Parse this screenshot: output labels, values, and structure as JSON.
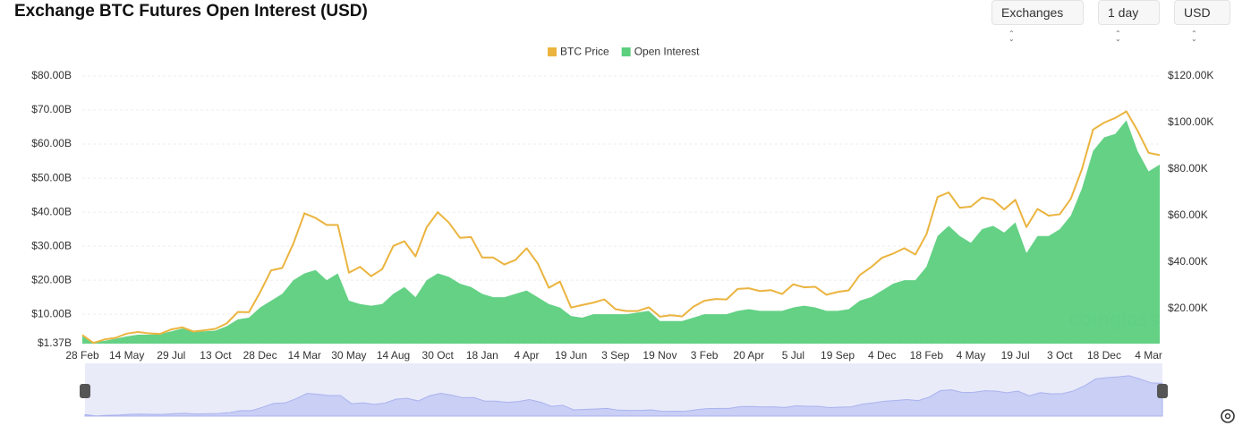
{
  "controls": [
    "Exchanges",
    "1 day",
    "USD"
  ],
  "watermark": "coinglass",
  "chart_data": {
    "type": "combo",
    "title": "Exchange BTC Futures Open Interest (USD)",
    "categories": [
      "28 Feb",
      null,
      null,
      null,
      "14 May",
      null,
      null,
      null,
      "29 Jul",
      null,
      null,
      null,
      "13 Oct",
      null,
      null,
      null,
      "28 Dec",
      null,
      null,
      null,
      "14 Mar",
      null,
      null,
      null,
      "30 May",
      null,
      null,
      null,
      "14 Aug",
      null,
      null,
      null,
      "30 Oct",
      null,
      null,
      null,
      "18 Jan",
      null,
      null,
      null,
      "4 Apr",
      null,
      null,
      null,
      "19 Jun",
      null,
      null,
      null,
      "3 Sep",
      null,
      null,
      null,
      "19 Nov",
      null,
      null,
      null,
      "3 Feb",
      null,
      null,
      null,
      "20 Apr",
      null,
      null,
      null,
      "5 Jul",
      null,
      null,
      null,
      "19 Sep",
      null,
      null,
      null,
      "4 Dec",
      null,
      null,
      null,
      "18 Feb",
      null,
      null,
      null,
      "4 May",
      null,
      null,
      null,
      "19 Jul",
      null,
      null,
      null,
      "3 Oct",
      null,
      null,
      null,
      "18 Dec",
      null,
      null,
      null,
      "4 Mar",
      null
    ],
    "series": [
      {
        "name": "BTC Price",
        "type": "line",
        "axis": "y2",
        "color": "#ebb43f",
        "values": [
          8700,
          5300,
          6800,
          7500,
          9300,
          10000,
          9400,
          9200,
          11100,
          12000,
          10200,
          10700,
          11400,
          13700,
          18600,
          18500,
          27000,
          36500,
          37500,
          48000,
          61000,
          59000,
          56000,
          56000,
          35500,
          38000,
          34000,
          37000,
          47000,
          49000,
          42500,
          55000,
          61500,
          57000,
          50500,
          50800,
          42000,
          42000,
          39000,
          41000,
          46000,
          39500,
          29000,
          31700,
          20500,
          21600,
          22600,
          24000,
          19800,
          19000,
          19000,
          20600,
          16600,
          17200,
          16700,
          20800,
          23400,
          24200,
          24000,
          28500,
          28800,
          27600,
          28000,
          26300,
          30500,
          29200,
          29400,
          26000,
          27200,
          27900,
          34500,
          37800,
          41900,
          43700,
          46000,
          43300,
          52000,
          68000,
          70000,
          63400,
          63900,
          67800,
          66800,
          62700,
          66800,
          55100,
          62900,
          60000,
          60600,
          67300,
          80000,
          97000,
          100000,
          102000,
          104800,
          96600,
          87000,
          86000
        ]
      },
      {
        "name": "Open Interest",
        "type": "area",
        "color": "#5ccf7e",
        "values": [
          3.5,
          1.8,
          2.2,
          2.8,
          3.5,
          4.0,
          4.0,
          4.2,
          5.0,
          5.8,
          5.0,
          5.0,
          5.2,
          6.5,
          8.5,
          9.0,
          12,
          14,
          16,
          20,
          22,
          23,
          20,
          22,
          14,
          13,
          12.5,
          13,
          16,
          18,
          15,
          20,
          22,
          21,
          19,
          18,
          16,
          15,
          15,
          16,
          17,
          15,
          13,
          12,
          9.5,
          9,
          10,
          10,
          10,
          10,
          10.5,
          11,
          8,
          8,
          8,
          9,
          10,
          10,
          10,
          11,
          11.5,
          11,
          11,
          11,
          12,
          12.5,
          12,
          11,
          11,
          11.5,
          14,
          15,
          17,
          19,
          20,
          20,
          24,
          33,
          36,
          33,
          31,
          35,
          36,
          34,
          37,
          28,
          33,
          33,
          35,
          39,
          47,
          58,
          62,
          63,
          67,
          58,
          52,
          54
        ]
      }
    ],
    "ylim": [
      1.37,
      80
    ],
    "yticks": [
      {
        "value": 1.37,
        "label": "$1.37B"
      },
      {
        "value": 10,
        "label": "$10.00B"
      },
      {
        "value": 20,
        "label": "$20.00B"
      },
      {
        "value": 30,
        "label": "$30.00B"
      },
      {
        "value": 40,
        "label": "$40.00B"
      },
      {
        "value": 50,
        "label": "$50.00B"
      },
      {
        "value": 60,
        "label": "$60.00B"
      },
      {
        "value": 70,
        "label": "$70.00B"
      },
      {
        "value": 80,
        "label": "$80.00B"
      }
    ],
    "y2lim": [
      5000,
      120000
    ],
    "y2ticks": [
      {
        "value": 20000,
        "label": "$20.00K"
      },
      {
        "value": 40000,
        "label": "$40.00K"
      },
      {
        "value": 60000,
        "label": "$60.00K"
      },
      {
        "value": 80000,
        "label": "$80.00K"
      },
      {
        "value": 100000,
        "label": "$100.00K"
      },
      {
        "value": 120000,
        "label": "$120.00K"
      }
    ],
    "grid": true,
    "legend": "top"
  }
}
